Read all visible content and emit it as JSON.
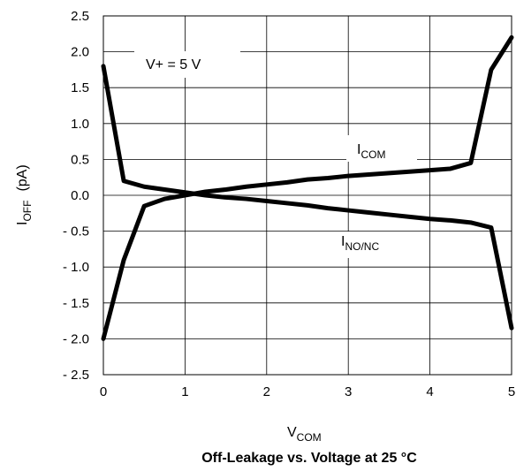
{
  "chart_data": {
    "type": "line",
    "title": "Off-Leakage vs. Voltage at 25 °C",
    "xlabel": {
      "main": "V",
      "sub": "COM"
    },
    "ylabel": {
      "main": "I",
      "sub": "OFF",
      "unit": "(pA)"
    },
    "annotation": "V+ = 5 V",
    "xlim": [
      0,
      5
    ],
    "ylim": [
      -2.5,
      2.5
    ],
    "x_ticks": [
      0,
      1,
      2,
      3,
      4,
      5
    ],
    "x_tick_labels": [
      "0",
      "1",
      "2",
      "3",
      "4",
      "5"
    ],
    "y_ticks": [
      2.5,
      2.0,
      1.5,
      1.0,
      0.5,
      0.0,
      -0.5,
      -1.0,
      -1.5,
      -2.0,
      -2.5
    ],
    "y_tick_labels": [
      "2.5",
      "2.0",
      "1.5",
      "1.0",
      "0.5",
      "0.0",
      "- 0.5",
      "- 1.0",
      "- 1.5",
      "- 2.0",
      "- 2.5"
    ],
    "grid": true,
    "series": [
      {
        "name": {
          "main": "I",
          "sub": "COM"
        },
        "x": [
          0,
          0.25,
          0.5,
          0.75,
          1.0,
          1.25,
          1.5,
          1.75,
          2.0,
          2.25,
          2.5,
          2.75,
          3.0,
          3.25,
          3.5,
          3.75,
          4.0,
          4.25,
          4.5,
          4.75,
          5.0
        ],
        "y": [
          -2.0,
          -0.9,
          -0.15,
          -0.05,
          0.0,
          0.05,
          0.08,
          0.12,
          0.15,
          0.18,
          0.22,
          0.24,
          0.27,
          0.29,
          0.31,
          0.33,
          0.35,
          0.37,
          0.45,
          1.75,
          2.2
        ]
      },
      {
        "name": {
          "main": "I",
          "sub": "NO/NC"
        },
        "x": [
          0,
          0.25,
          0.5,
          0.75,
          1.0,
          1.25,
          1.5,
          1.75,
          2.0,
          2.25,
          2.5,
          2.75,
          3.0,
          3.25,
          3.5,
          3.75,
          4.0,
          4.25,
          4.5,
          4.75,
          5.0
        ],
        "y": [
          1.8,
          0.2,
          0.12,
          0.08,
          0.04,
          0.0,
          -0.03,
          -0.05,
          -0.08,
          -0.11,
          -0.14,
          -0.18,
          -0.21,
          -0.24,
          -0.27,
          -0.3,
          -0.33,
          -0.35,
          -0.38,
          -0.45,
          -1.85
        ]
      }
    ]
  }
}
